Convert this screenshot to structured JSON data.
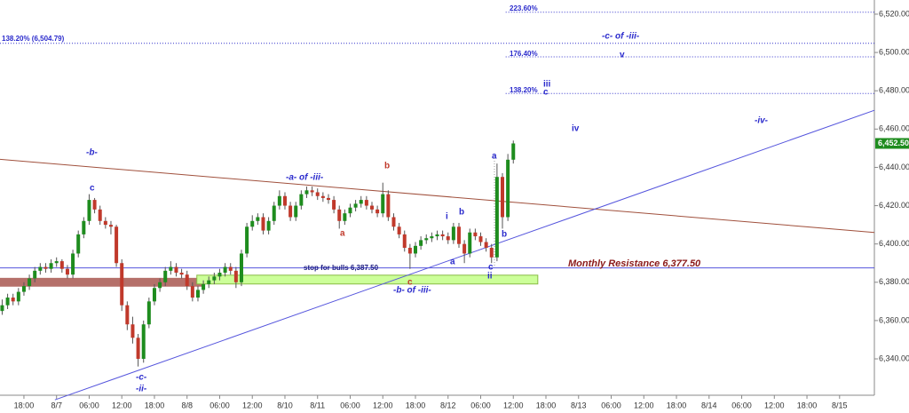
{
  "chart_data": {
    "type": "candlestick",
    "up_color": "#1e8c1e",
    "down_color": "#c0392b",
    "xlim": [
      -4.4,
      156.4
    ],
    "ylim": [
      6321,
      6527.4
    ],
    "xticks": [
      {
        "value": 0,
        "label": "18:00"
      },
      {
        "value": 6,
        "label": "8/7"
      },
      {
        "value": 12,
        "label": "06:00"
      },
      {
        "value": 18,
        "label": "12:00"
      },
      {
        "value": 24,
        "label": "18:00"
      },
      {
        "value": 30,
        "label": "8/8"
      },
      {
        "value": 36,
        "label": "06:00"
      },
      {
        "value": 42,
        "label": "12:00"
      },
      {
        "value": 48,
        "label": "8/10"
      },
      {
        "value": 54,
        "label": "8/11"
      },
      {
        "value": 60,
        "label": "06:00"
      },
      {
        "value": 66,
        "label": "12:00"
      },
      {
        "value": 72,
        "label": "18:00"
      },
      {
        "value": 78,
        "label": "8/12"
      },
      {
        "value": 84,
        "label": "06:00"
      },
      {
        "value": 90,
        "label": "12:00"
      },
      {
        "value": 96,
        "label": "18:00"
      },
      {
        "value": 102,
        "label": "8/13"
      },
      {
        "value": 108,
        "label": "06:00"
      },
      {
        "value": 114,
        "label": "12:00"
      },
      {
        "value": 120,
        "label": "18:00"
      },
      {
        "value": 126,
        "label": "8/14"
      },
      {
        "value": 132,
        "label": "06:00"
      },
      {
        "value": 138,
        "label": "12:00"
      },
      {
        "value": 144,
        "label": "18:00"
      },
      {
        "value": 150,
        "label": "8/15"
      }
    ],
    "yticks": [
      {
        "value": 6340,
        "label": "6,340.00"
      },
      {
        "value": 6360,
        "label": "6,360.00"
      },
      {
        "value": 6380,
        "label": "6,380.00"
      },
      {
        "value": 6400,
        "label": "6,400.00"
      },
      {
        "value": 6420,
        "label": "6,420.00"
      },
      {
        "value": 6440,
        "label": "6,440.00"
      },
      {
        "value": 6460,
        "label": "6,460.00"
      },
      {
        "value": 6480,
        "label": "6,480.00"
      },
      {
        "value": 6500,
        "label": "6,500.00"
      },
      {
        "value": 6520,
        "label": "6,520.00"
      }
    ],
    "candles": [
      [
        -4,
        6365,
        6371,
        6363,
        6368
      ],
      [
        -3,
        6368,
        6374,
        6366,
        6372
      ],
      [
        -2,
        6372,
        6374,
        6368,
        6370
      ],
      [
        -1,
        6370,
        6377,
        6368,
        6375
      ],
      [
        0,
        6375,
        6380,
        6373,
        6378
      ],
      [
        1,
        6378,
        6384,
        6376,
        6382
      ],
      [
        2,
        6382,
        6388,
        6380,
        6386
      ],
      [
        3,
        6386,
        6390,
        6384,
        6388
      ],
      [
        4,
        6388,
        6390,
        6385,
        6387
      ],
      [
        5,
        6387,
        6392,
        6385,
        6390
      ],
      [
        6,
        6390,
        6393,
        6388,
        6391
      ],
      [
        7,
        6391,
        6392,
        6385,
        6387
      ],
      [
        8,
        6387,
        6389,
        6382,
        6384
      ],
      [
        9,
        6384,
        6397,
        6382,
        6395
      ],
      [
        10,
        6395,
        6407,
        6393,
        6405
      ],
      [
        11,
        6405,
        6414,
        6403,
        6412
      ],
      [
        12,
        6412,
        6426,
        6410,
        6423
      ],
      [
        13,
        6423,
        6424,
        6416,
        6418
      ],
      [
        14,
        6418,
        6420,
        6410,
        6412
      ],
      [
        15,
        6412,
        6414,
        6408,
        6410
      ],
      [
        16,
        6410,
        6412,
        6405,
        6409
      ],
      [
        17,
        6409,
        6410,
        6388,
        6390
      ],
      [
        18,
        6390,
        6392,
        6365,
        6368
      ],
      [
        19,
        6368,
        6370,
        6355,
        6358
      ],
      [
        20,
        6358,
        6362,
        6348,
        6351
      ],
      [
        21,
        6351,
        6353,
        6336,
        6340
      ],
      [
        22,
        6340,
        6360,
        6338,
        6358
      ],
      [
        23,
        6358,
        6372,
        6356,
        6370
      ],
      [
        24,
        6370,
        6379,
        6368,
        6377
      ],
      [
        25,
        6377,
        6382,
        6375,
        6380
      ],
      [
        26,
        6380,
        6388,
        6378,
        6386
      ],
      [
        27,
        6386,
        6391,
        6384,
        6388
      ],
      [
        28,
        6388,
        6390,
        6383,
        6385
      ],
      [
        29,
        6385,
        6387,
        6382,
        6384
      ],
      [
        30,
        6384,
        6386,
        6376,
        6378
      ],
      [
        31,
        6378,
        6380,
        6370,
        6372
      ],
      [
        32,
        6372,
        6378,
        6370,
        6376
      ],
      [
        33,
        6376,
        6381,
        6374,
        6379
      ],
      [
        34,
        6379,
        6383,
        6377,
        6381
      ],
      [
        35,
        6381,
        6385,
        6379,
        6383
      ],
      [
        36,
        6383,
        6387,
        6381,
        6385
      ],
      [
        37,
        6385,
        6390,
        6383,
        6388
      ],
      [
        38,
        6388,
        6390,
        6384,
        6386
      ],
      [
        39,
        6386,
        6388,
        6377,
        6380
      ],
      [
        40,
        6380,
        6397,
        6378,
        6395
      ],
      [
        41,
        6395,
        6411,
        6393,
        6409
      ],
      [
        42,
        6409,
        6415,
        6407,
        6412
      ],
      [
        43,
        6412,
        6416,
        6410,
        6414
      ],
      [
        44,
        6414,
        6416,
        6405,
        6407
      ],
      [
        45,
        6407,
        6414,
        6405,
        6412
      ],
      [
        46,
        6412,
        6422,
        6410,
        6420
      ],
      [
        47,
        6420,
        6428,
        6418,
        6425
      ],
      [
        48,
        6425,
        6427,
        6418,
        6420
      ],
      [
        49,
        6420,
        6422,
        6412,
        6414
      ],
      [
        50,
        6414,
        6422,
        6412,
        6420
      ],
      [
        51,
        6420,
        6428,
        6418,
        6426
      ],
      [
        52,
        6426,
        6430,
        6424,
        6428
      ],
      [
        53,
        6428,
        6430,
        6425,
        6427
      ],
      [
        54,
        6427,
        6429,
        6423,
        6425
      ],
      [
        55,
        6425,
        6427,
        6422,
        6424
      ],
      [
        56,
        6424,
        6426,
        6421,
        6423
      ],
      [
        57,
        6423,
        6425,
        6416,
        6418
      ],
      [
        58,
        6418,
        6420,
        6408,
        6412
      ],
      [
        59,
        6412,
        6418,
        6410,
        6416
      ],
      [
        60,
        6416,
        6421,
        6414,
        6419
      ],
      [
        61,
        6419,
        6423,
        6417,
        6421
      ],
      [
        62,
        6421,
        6425,
        6419,
        6423
      ],
      [
        63,
        6423,
        6425,
        6418,
        6420
      ],
      [
        64,
        6420,
        6422,
        6416,
        6418
      ],
      [
        65,
        6418,
        6420,
        6414,
        6416
      ],
      [
        66,
        6416,
        6432,
        6414,
        6426
      ],
      [
        67,
        6426,
        6428,
        6412,
        6414
      ],
      [
        68,
        6414,
        6416,
        6407,
        6409
      ],
      [
        69,
        6409,
        6411,
        6403,
        6405
      ],
      [
        70,
        6405,
        6407,
        6396,
        6398
      ],
      [
        71,
        6398,
        6400,
        6387,
        6395
      ],
      [
        72,
        6395,
        6401,
        6393,
        6399
      ],
      [
        73,
        6399,
        6404,
        6397,
        6402
      ],
      [
        74,
        6402,
        6405,
        6400,
        6403
      ],
      [
        75,
        6403,
        6406,
        6401,
        6404
      ],
      [
        76,
        6404,
        6407,
        6402,
        6405
      ],
      [
        77,
        6405,
        6407,
        6402,
        6404
      ],
      [
        78,
        6404,
        6406,
        6400,
        6402
      ],
      [
        79,
        6402,
        6411,
        6400,
        6409
      ],
      [
        80,
        6409,
        6411,
        6398,
        6400
      ],
      [
        81,
        6400,
        6402,
        6390,
        6395
      ],
      [
        82,
        6395,
        6408,
        6393,
        6406
      ],
      [
        83,
        6406,
        6408,
        6402,
        6404
      ],
      [
        84,
        6404,
        6406,
        6399,
        6401
      ],
      [
        85,
        6401,
        6403,
        6396,
        6398
      ],
      [
        86,
        6398,
        6400,
        6390,
        6393
      ],
      [
        87,
        6393,
        6442,
        6391,
        6435
      ],
      [
        88,
        6435,
        6437,
        6408,
        6414
      ],
      [
        89,
        6414,
        6447,
        6412,
        6444
      ],
      [
        90,
        6444,
        6454,
        6442,
        6452.5
      ]
    ],
    "trendlines": [
      {
        "color": "#a0503c",
        "x": [
          -4.4,
          156.4
        ],
        "y": [
          6444.2,
          6406
        ]
      },
      {
        "color": "#5555dd",
        "x": [
          5.7,
          156.4
        ],
        "y": [
          6318.6,
          6469.8
        ]
      }
    ],
    "levels": [
      {
        "value": 6521,
        "from": 88.6,
        "color": "#3333cc",
        "dotted": true
      },
      {
        "value": 6504.79,
        "from": -4.4,
        "color": "#3333cc",
        "dotted": true
      },
      {
        "value": 6497.7,
        "from": 88.6,
        "color": "#3333cc",
        "dotted": true
      },
      {
        "value": 6478.6,
        "from": 88.6,
        "color": "#3333cc",
        "dotted": true
      },
      {
        "value": 6387.5,
        "from": -4.4,
        "color": "#5555dd",
        "dotted": false
      }
    ],
    "zones": [
      {
        "x": [
          -4.4,
          32.8
        ],
        "y": [
          6377.7,
          6382.3
        ],
        "color": "#b5706a"
      },
      {
        "x": [
          31.8,
          94.5
        ],
        "y": [
          6379.1,
          6383.7
        ],
        "color": "#ccff99"
      }
    ],
    "last_price": {
      "value": 6452.5,
      "label": "6,452.50"
    },
    "annotations": [
      {
        "text": "223.60%",
        "color": "#2a2acc"
      },
      {
        "text": "138.20% (6,504.79)",
        "color": "#2a2acc"
      },
      {
        "text": "-c- of -iii-",
        "color": "#2a2acc"
      },
      {
        "text": "176.40%",
        "color": "#2a2acc"
      },
      {
        "text": "v",
        "color": "#2a2acc"
      },
      {
        "text": "iii",
        "color": "#2a2acc"
      },
      {
        "text": "138.20%",
        "color": "#2a2acc"
      },
      {
        "text": "c",
        "color": "#2a2acc"
      },
      {
        "text": "iv",
        "color": "#2a2acc"
      },
      {
        "text": "-iv-",
        "color": "#2a2acc"
      },
      {
        "text": "-b-",
        "color": "#2a2acc"
      },
      {
        "text": "c",
        "color": "#2a2acc"
      },
      {
        "text": "-a- of -iii-",
        "color": "#2a2acc"
      },
      {
        "text": "b",
        "color": "#c0392b"
      },
      {
        "text": "a",
        "color": "#c0392b"
      },
      {
        "text": "i",
        "color": "#2a2acc"
      },
      {
        "text": "b",
        "color": "#2a2acc"
      },
      {
        "text": "a",
        "color": "#2a2acc"
      },
      {
        "text": "b",
        "color": "#2a2acc"
      },
      {
        "text": "a",
        "color": "#2a2acc"
      },
      {
        "text": "c",
        "color": "#2a2acc"
      },
      {
        "text": "ii",
        "color": "#2a2acc"
      },
      {
        "text": "c",
        "color": "#c0392b"
      },
      {
        "text": "-b- of -iii-",
        "color": "#2a2acc"
      },
      {
        "text": "stop for bulls 6,387.50",
        "color": "#1a1a80"
      },
      {
        "text": "Monthly Resistance 6,377.50",
        "color": "#8b1a1a"
      },
      {
        "text": "-c-",
        "color": "#2a2acc"
      },
      {
        "text": "-ii-",
        "color": "#2a2acc"
      }
    ]
  }
}
